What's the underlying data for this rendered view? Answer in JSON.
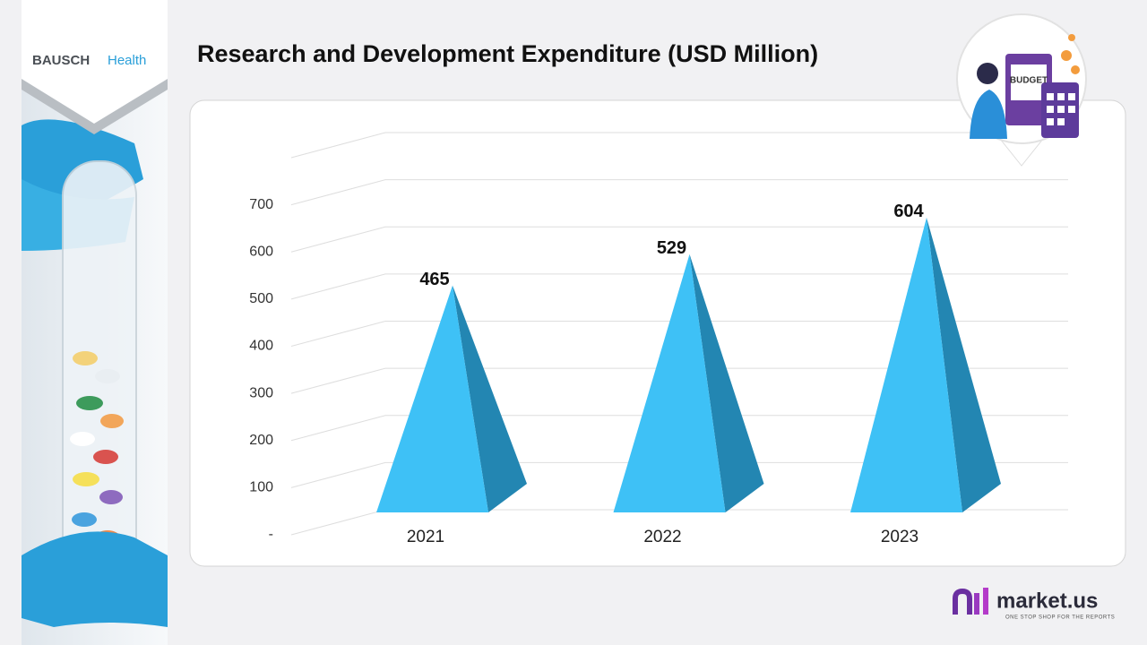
{
  "chart_data": {
    "type": "pyramid",
    "title": "Research and Development Expenditure (USD Million)",
    "categories": [
      "2021",
      "2022",
      "2023"
    ],
    "values": [
      465,
      529,
      604
    ],
    "color": "#3ec1f6",
    "shade_color": "#2386b2",
    "ylim": [
      0,
      800
    ],
    "yticks": [
      {
        "value": 0,
        "label": "-"
      },
      100,
      200,
      300,
      400,
      500,
      600,
      700
    ],
    "grid": true
  },
  "brand": {
    "company_prefix": "BAUSCH",
    "company_suffix": "Health",
    "publisher": "market.us",
    "publisher_tagline": "ONE STOP SHOP FOR THE REPORTS",
    "illustration_label": "BUDGET"
  }
}
